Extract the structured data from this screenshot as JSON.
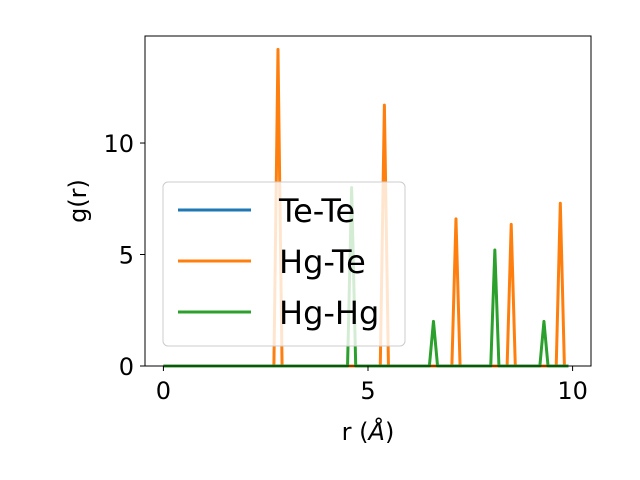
{
  "chart_data": {
    "type": "line",
    "xlabel_main": "r (",
    "xlabel_unit": "Å",
    "xlabel_close": ")",
    "ylabel": "g(r)",
    "xlim": [
      -0.45,
      10.45
    ],
    "ylim": [
      0,
      14.8
    ],
    "xticks": [
      0,
      5,
      10
    ],
    "yticks": [
      0,
      5,
      10
    ],
    "legend_position": "center-left",
    "series": [
      {
        "name": "Te-Te",
        "color": "#1f77b4",
        "x": [
          0,
          9.9
        ],
        "y": [
          0,
          0
        ]
      },
      {
        "name": "Hg-Te",
        "color": "#ff7f0e",
        "x": [
          0,
          2.7,
          2.8,
          2.9,
          5.3,
          5.4,
          5.5,
          7.05,
          7.15,
          7.25,
          8.4,
          8.5,
          8.6,
          9.6,
          9.7,
          9.8,
          9.9
        ],
        "y": [
          0,
          0,
          14.2,
          0,
          0,
          11.7,
          0,
          0,
          6.6,
          0,
          0,
          6.35,
          0,
          0,
          7.3,
          0,
          0
        ]
      },
      {
        "name": "Hg-Hg",
        "color": "#2ca02c",
        "x": [
          0,
          4.5,
          4.6,
          4.7,
          6.5,
          6.6,
          6.7,
          8.0,
          8.1,
          8.2,
          9.2,
          9.3,
          9.4,
          9.9
        ],
        "y": [
          0,
          0,
          8.0,
          0,
          0,
          2.0,
          0,
          0,
          5.2,
          0,
          0,
          2.0,
          0,
          0
        ]
      }
    ]
  }
}
